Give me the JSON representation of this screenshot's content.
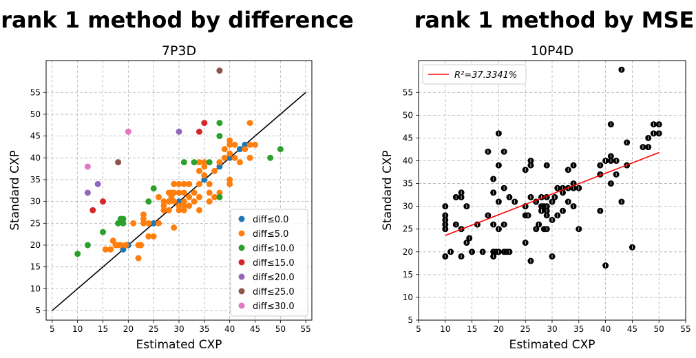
{
  "titles": {
    "left": "rank 1 method by difference",
    "right": "rank 1 method by MSE"
  },
  "chart_data": [
    {
      "type": "scatter",
      "title": "7P3D",
      "xlabel": "Estimated CXP",
      "ylabel": "Standard CXP",
      "xlim": [
        3.8,
        56.2
      ],
      "ylim": [
        2.8,
        62.3
      ],
      "xticks": [
        "5",
        "10",
        "15",
        "20",
        "25",
        "30",
        "35",
        "40",
        "45",
        "50",
        "55"
      ],
      "yticks": [
        "5",
        "10",
        "15",
        "20",
        "25",
        "30",
        "35",
        "40",
        "45",
        "50",
        "55"
      ],
      "grid": true,
      "legend_position": "bottom-right",
      "series": [
        {
          "name": "diff≤0.0",
          "color": "#1f77b4",
          "points": [
            [
              19,
              19
            ],
            [
              20,
              20
            ],
            [
              25,
              25
            ],
            [
              30,
              30
            ],
            [
              35,
              35
            ],
            [
              40,
              40
            ],
            [
              43,
              43
            ],
            [
              42,
              42
            ],
            [
              38,
              38
            ]
          ]
        },
        {
          "name": "diff≤5.0",
          "color": "#ff7f0e",
          "points": [
            [
              15.5,
              19
            ],
            [
              16.5,
              19
            ],
            [
              17,
              21
            ],
            [
              17.5,
              20
            ],
            [
              18,
              20
            ],
            [
              18.5,
              20
            ],
            [
              19.5,
              20
            ],
            [
              21,
              25
            ],
            [
              22,
              17
            ],
            [
              22,
              20
            ],
            [
              22.5,
              20
            ],
            [
              23,
              25
            ],
            [
              23,
              26
            ],
            [
              23,
              27
            ],
            [
              24,
              22
            ],
            [
              24,
              25
            ],
            [
              25,
              22
            ],
            [
              26,
              31
            ],
            [
              26,
              25
            ],
            [
              27,
              28
            ],
            [
              27,
              29
            ],
            [
              27,
              30
            ],
            [
              28,
              32
            ],
            [
              28,
              30
            ],
            [
              28,
              28
            ],
            [
              28.5,
              31
            ],
            [
              28.5,
              32
            ],
            [
              29,
              24
            ],
            [
              29,
              30
            ],
            [
              29,
              32
            ],
            [
              29,
              34
            ],
            [
              30,
              34
            ],
            [
              30,
              32
            ],
            [
              30,
              29
            ],
            [
              30,
              28
            ],
            [
              31,
              34
            ],
            [
              31,
              32
            ],
            [
              31,
              30
            ],
            [
              31,
              29
            ],
            [
              31,
              28
            ],
            [
              32,
              31
            ],
            [
              32,
              29
            ],
            [
              32,
              34
            ],
            [
              33,
              32
            ],
            [
              33,
              30
            ],
            [
              34,
              31
            ],
            [
              34,
              28
            ],
            [
              34,
              34
            ],
            [
              34,
              37
            ],
            [
              34,
              39
            ],
            [
              35,
              36
            ],
            [
              35,
              38
            ],
            [
              35,
              39
            ],
            [
              36,
              32
            ],
            [
              36,
              30
            ],
            [
              36,
              34
            ],
            [
              37,
              31
            ],
            [
              37,
              37
            ],
            [
              38,
              32
            ],
            [
              38,
              39
            ],
            [
              39,
              40
            ],
            [
              39,
              42
            ],
            [
              40,
              44
            ],
            [
              40,
              35
            ],
            [
              40,
              34
            ],
            [
              40,
              43
            ],
            [
              40,
              41
            ],
            [
              41,
              40
            ],
            [
              41,
              43
            ],
            [
              42,
              39
            ],
            [
              43,
              42
            ],
            [
              44,
              40
            ],
            [
              44,
              48
            ],
            [
              44,
              43
            ],
            [
              45,
              43
            ]
          ]
        },
        {
          "name": "diff≤10.0",
          "color": "#2ca02c",
          "points": [
            [
              10,
              18
            ],
            [
              12,
              20
            ],
            [
              15,
              23
            ],
            [
              18,
              25
            ],
            [
              18.5,
              26
            ],
            [
              19,
              25
            ],
            [
              19,
              26
            ],
            [
              24,
              30
            ],
            [
              25,
              33
            ],
            [
              31,
              39
            ],
            [
              33,
              39
            ],
            [
              36,
              39
            ],
            [
              38,
              31
            ],
            [
              38,
              45
            ],
            [
              38,
              48
            ],
            [
              48,
              40
            ],
            [
              50,
              42
            ]
          ]
        },
        {
          "name": "diff≤15.0",
          "color": "#d62728",
          "points": [
            [
              13,
              28
            ],
            [
              15,
              30
            ],
            [
              34,
              46
            ],
            [
              35,
              48
            ]
          ]
        },
        {
          "name": "diff≤20.0",
          "color": "#9467bd",
          "points": [
            [
              12,
              32
            ],
            [
              14,
              34
            ],
            [
              30,
              46
            ]
          ]
        },
        {
          "name": "diff≤25.0",
          "color": "#8c564b",
          "points": [
            [
              18,
              39
            ],
            [
              38,
              60
            ]
          ]
        },
        {
          "name": "diff≤30.0",
          "color": "#e377c2",
          "points": [
            [
              12,
              38
            ],
            [
              20,
              46
            ]
          ]
        }
      ],
      "reference_line": {
        "color": "#000000",
        "points": [
          [
            5,
            5
          ],
          [
            55,
            55
          ]
        ]
      }
    },
    {
      "type": "scatter",
      "title": "10P4D",
      "xlabel": "Estimated CXP",
      "ylabel": "Standard CXP",
      "xlim": [
        5,
        55
      ],
      "ylim": [
        5,
        62
      ],
      "xticks": [
        "5",
        "10",
        "15",
        "20",
        "25",
        "30",
        "35",
        "40",
        "45",
        "50",
        "55"
      ],
      "yticks": [
        "5",
        "10",
        "15",
        "20",
        "25",
        "30",
        "35",
        "40",
        "45",
        "50",
        "55"
      ],
      "grid": true,
      "legend_position": "top-left",
      "series": [
        {
          "color": "#000000",
          "points": [
            [
              10,
              19
            ],
            [
              10,
              25
            ],
            [
              10,
              26
            ],
            [
              10,
              27
            ],
            [
              10,
              28
            ],
            [
              10,
              30
            ],
            [
              11,
              20
            ],
            [
              12,
              32
            ],
            [
              12,
              26
            ],
            [
              13,
              32
            ],
            [
              13,
              33
            ],
            [
              13,
              25
            ],
            [
              13,
              19
            ],
            [
              14,
              30
            ],
            [
              14,
              22
            ],
            [
              14.5,
              23
            ],
            [
              15,
              20
            ],
            [
              16,
              26
            ],
            [
              17,
              20
            ],
            [
              18,
              42
            ],
            [
              18,
              28
            ],
            [
              19,
              20
            ],
            [
              19,
              19
            ],
            [
              19,
              26
            ],
            [
              19,
              33
            ],
            [
              19,
              36
            ],
            [
              19.5,
              20
            ],
            [
              20,
              46
            ],
            [
              20,
              39
            ],
            [
              20,
              31
            ],
            [
              20,
              25
            ],
            [
              20,
              20
            ],
            [
              21,
              42
            ],
            [
              21,
              34
            ],
            [
              21,
              26
            ],
            [
              21,
              20
            ],
            [
              21.5,
              20
            ],
            [
              22,
              32
            ],
            [
              22,
              20
            ],
            [
              23,
              31
            ],
            [
              25,
              38
            ],
            [
              25,
              22
            ],
            [
              25,
              28
            ],
            [
              25,
              30
            ],
            [
              25.5,
              28
            ],
            [
              26,
              40
            ],
            [
              26,
              39
            ],
            [
              26,
              32
            ],
            [
              26,
              18
            ],
            [
              27,
              25
            ],
            [
              27,
              31
            ],
            [
              27.5,
              26
            ],
            [
              28,
              32
            ],
            [
              28,
              30
            ],
            [
              28,
              29
            ],
            [
              28.5,
              30
            ],
            [
              28.5,
              25
            ],
            [
              29,
              39
            ],
            [
              29,
              32
            ],
            [
              29,
              30
            ],
            [
              29,
              29
            ],
            [
              29,
              28
            ],
            [
              29,
              25
            ],
            [
              30,
              27
            ],
            [
              30,
              19
            ],
            [
              30,
              31
            ],
            [
              30.5,
              32
            ],
            [
              31,
              34
            ],
            [
              31,
              28
            ],
            [
              32,
              34
            ],
            [
              32,
              33
            ],
            [
              32,
              29
            ],
            [
              33,
              38
            ],
            [
              33,
              31
            ],
            [
              33,
              34
            ],
            [
              34,
              39
            ],
            [
              34,
              35
            ],
            [
              34,
              34
            ],
            [
              34,
              30
            ],
            [
              35,
              34
            ],
            [
              35,
              25
            ],
            [
              39,
              39
            ],
            [
              39,
              37
            ],
            [
              39,
              29
            ],
            [
              40,
              40
            ],
            [
              40,
              17
            ],
            [
              41,
              48
            ],
            [
              41,
              41
            ],
            [
              41,
              35
            ],
            [
              41,
              40
            ],
            [
              42,
              37
            ],
            [
              42,
              40
            ],
            [
              43,
              60
            ],
            [
              43,
              31
            ],
            [
              44,
              44
            ],
            [
              44,
              39
            ],
            [
              45,
              21
            ],
            [
              47,
              43
            ],
            [
              48,
              43
            ],
            [
              48,
              45
            ],
            [
              49,
              46
            ],
            [
              49,
              48
            ],
            [
              50,
              48
            ],
            [
              50,
              46
            ]
          ]
        }
      ],
      "fit_line": {
        "color": "#ff0000",
        "points": [
          [
            10,
            23.6
          ],
          [
            50,
            41.8
          ]
        ]
      },
      "legend": [
        "R²=37.3341%"
      ]
    }
  ]
}
